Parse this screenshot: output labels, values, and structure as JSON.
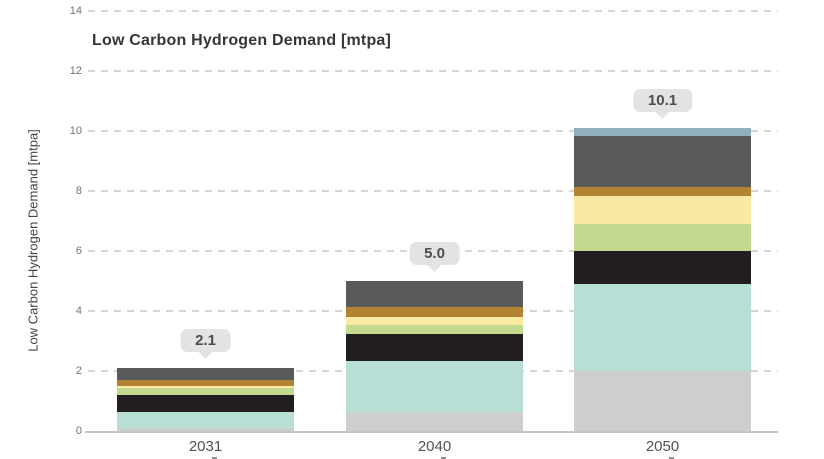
{
  "chart_data": {
    "type": "bar",
    "stacked": true,
    "title": "Low Carbon Hydrogen Demand [mtpa]",
    "ylabel": "Low Carbon Hydrogen Demand [mtpa]",
    "xlabel": "",
    "categories": [
      "2031",
      "2040",
      "2050"
    ],
    "totals": [
      "2.1",
      "5.0",
      "10.1"
    ],
    "y_ticks": [
      0,
      2,
      4,
      6,
      8,
      10,
      12,
      14
    ],
    "ylim": [
      0,
      14
    ],
    "grid": "horizontal-dashed",
    "legend": "none",
    "series": [
      {
        "name": "light-gray",
        "color": "#cecece",
        "values": [
          0.1,
          0.65,
          2.0
        ]
      },
      {
        "name": "mint",
        "color": "#b7dfd5",
        "values": [
          0.55,
          1.7,
          2.9
        ]
      },
      {
        "name": "black",
        "color": "#221e1f",
        "values": [
          0.55,
          0.9,
          1.1
        ]
      },
      {
        "name": "light-green",
        "color": "#c3d98e",
        "values": [
          0.25,
          0.3,
          0.9
        ]
      },
      {
        "name": "pale-yellow",
        "color": "#fbe8a2",
        "values": [
          0.05,
          0.25,
          0.95
        ]
      },
      {
        "name": "ochre",
        "color": "#b28431",
        "values": [
          0.2,
          0.35,
          0.3
        ]
      },
      {
        "name": "dark-gray",
        "color": "#595a5c",
        "values": [
          0.4,
          0.85,
          1.7
        ]
      },
      {
        "name": "blue-gray",
        "color": "#92afbe",
        "values": [
          0.0,
          0.0,
          0.25
        ]
      }
    ],
    "colors": {
      "callout_bg": "#e3e3e3",
      "callout_text": "#4d4d4d",
      "gridline": "#d6d6d6",
      "baseline": "#c6c6c6",
      "title_text": "#3a3536",
      "tick_text": "#767172"
    }
  }
}
